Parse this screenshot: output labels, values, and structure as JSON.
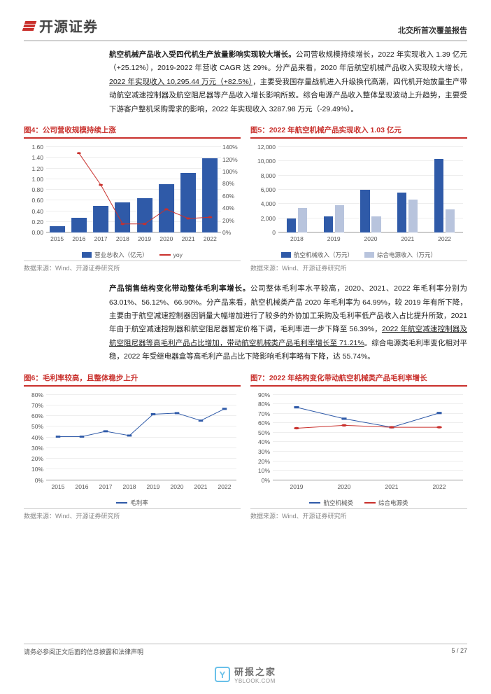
{
  "header": {
    "logo_text": "开源证券",
    "right_text": "北交所首次覆盖报告"
  },
  "para1": {
    "bold": "航空机械产品收入受四代机生产放量影响实现较大增长。",
    "rest_a": "公司营收规模持续增长，2022 年实现收入 1.39 亿元（+25.12%），2019-2022 年营收 CAGR 达 29%。分产品来看，2020 年后航空机械产品收入实现较大增长，",
    "u1": "2022 年实现收入 10,295.44 万元（+82.5%）",
    "rest_b": "，主要受我国存量战机进入升级换代高潮，四代机开始放量生产带动航空减速控制器及航空阻尼器等产品收入增长影响所致。综合电源产品收入整体呈现波动上升趋势，主要受下游客户整机采购需求的影响，2022 年实现收入 3287.98 万元（-29.49%）。"
  },
  "chart4": {
    "title": "图4：公司营收规模持续上涨",
    "type": "bar+line",
    "x": [
      "2015",
      "2016",
      "2017",
      "2018",
      "2019",
      "2020",
      "2021",
      "2022"
    ],
    "bars": [
      0.12,
      0.28,
      0.5,
      0.57,
      0.65,
      0.9,
      1.11,
      1.39
    ],
    "line_yoy": [
      null,
      130,
      78,
      14,
      14,
      38,
      23,
      25
    ],
    "y1_max": 1.6,
    "y1_step": 0.2,
    "y2_max": 140,
    "y2_step": 20,
    "bar_color": "#2f5aa8",
    "line_color": "#c9302c",
    "legend_bar": "营业总收入（亿元）",
    "legend_line": "yoy",
    "source": "数据来源：Wind、开源证券研究所"
  },
  "chart5": {
    "title": "图5：2022 年航空机械产品实现收入 1.03 亿元",
    "type": "grouped-bar",
    "x": [
      "2018",
      "2019",
      "2020",
      "2021",
      "2022"
    ],
    "series1": [
      1950,
      2300,
      6000,
      5640,
      10295
    ],
    "series2": [
      3500,
      3880,
      2320,
      4660,
      3288
    ],
    "y_max": 12000,
    "y_step": 2000,
    "color1": "#2f5aa8",
    "color2": "#b8c4dd",
    "legend1": "航空机械收入（万元）",
    "legend2": "综合电源收入（万元）",
    "source": "数据来源：Wind、开源证券研究所"
  },
  "para2": {
    "bold": "产品销售结构变化带动整体毛利率增长。",
    "rest_a": "公司整体毛利率水平较高，2020、2021、2022 年毛利率分别为 63.01%、56.12%、66.90%。分产品来看，航空机械类产品 2020 年毛利率为 64.99%，较 2019 年有所下降，主要由于航空减速控制器因销量大幅增加进行了较多的外协加工采购及毛利率低产品收入占比提升所致，2021 年由于航空减速控制器和航空阻尼器暂定价格下调，毛利率进一步下降至 56.39%，",
    "u1": "2022 年航空减速控制器及航空阻尼器等高毛利产品占比增加，带动航空机械类产品毛利率增长至 71.21%",
    "rest_b": "。综合电源类毛利率变化相对平稳，2022 年受继电器盒等高毛利产品占比下降影响毛利率略有下降，达 55.74%。"
  },
  "chart6": {
    "title": "图6：毛利率较高，且整体稳步上升",
    "type": "line",
    "x": [
      "2015",
      "2016",
      "2017",
      "2018",
      "2019",
      "2020",
      "2021",
      "2022"
    ],
    "values": [
      41,
      41,
      46,
      42,
      62,
      63,
      56,
      67
    ],
    "y_max": 80,
    "y_step": 10,
    "color": "#2f5aa8",
    "legend": "毛利率",
    "source": "数据来源：Wind、开源证券研究所"
  },
  "chart7": {
    "title": "图7：2022 年结构变化带动航空机械类产品毛利率增长",
    "type": "multi-line",
    "x": [
      "2019",
      "2020",
      "2021",
      "2022"
    ],
    "series1": [
      77,
      65,
      56,
      71
    ],
    "series2": [
      55,
      58,
      56,
      56
    ],
    "y_max": 90,
    "y_step": 10,
    "color1": "#2f5aa8",
    "color2": "#c9302c",
    "legend1": "航空机械类",
    "legend2": "综合电源类",
    "source": "数据来源：Wind、开源证券研究所"
  },
  "footer": {
    "left": "请务必参阅正文后面的信息披露和法律声明",
    "right": "5 / 27"
  },
  "watermark": {
    "cn": "研报之家",
    "en": "YBLOOK.COM"
  }
}
